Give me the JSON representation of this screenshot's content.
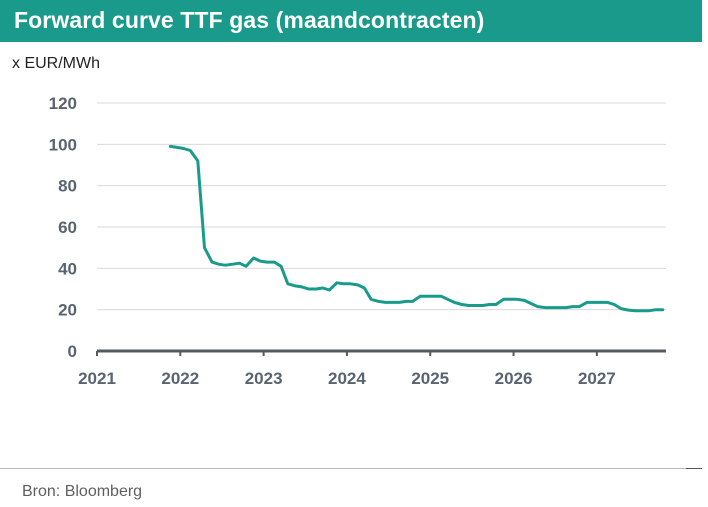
{
  "header": {
    "title": "Forward curve TTF gas (maandcontracten)"
  },
  "unit_label": "x EUR/MWh",
  "footer": {
    "source": "Bron: Bloomberg"
  },
  "colors": {
    "title_bg": "#1a9a8a",
    "line": "#1a9a8a",
    "grid": "#d9d9d9",
    "axis": "#555a60"
  },
  "chart_data": {
    "type": "line",
    "title": "Forward curve TTF gas (maandcontracten)",
    "ylabel": "x EUR/MWh",
    "xlabel": "",
    "ylim": [
      0,
      120
    ],
    "xlim": [
      2021.0,
      2027.83
    ],
    "yticks": [
      0,
      20,
      40,
      60,
      80,
      100,
      120
    ],
    "xticks": [
      {
        "value": 2021,
        "label": "2021"
      },
      {
        "value": 2022,
        "label": "2022"
      },
      {
        "value": 2023,
        "label": "2023"
      },
      {
        "value": 2024,
        "label": "2024"
      },
      {
        "value": 2025,
        "label": "2025"
      },
      {
        "value": 2026,
        "label": "2026"
      },
      {
        "value": 2027,
        "label": "2027"
      }
    ],
    "grid": true,
    "legend": "none",
    "series": [
      {
        "points": [
          [
            2021.88,
            99
          ],
          [
            2021.96,
            98.5
          ],
          [
            2022.04,
            98
          ],
          [
            2022.12,
            97
          ],
          [
            2022.21,
            92
          ],
          [
            2022.29,
            50
          ],
          [
            2022.38,
            43
          ],
          [
            2022.46,
            42
          ],
          [
            2022.54,
            41.5
          ],
          [
            2022.63,
            42
          ],
          [
            2022.71,
            42.5
          ],
          [
            2022.79,
            41
          ],
          [
            2022.88,
            45
          ],
          [
            2022.96,
            43.5
          ],
          [
            2023.04,
            43
          ],
          [
            2023.13,
            43
          ],
          [
            2023.21,
            41
          ],
          [
            2023.29,
            32.5
          ],
          [
            2023.38,
            31.5
          ],
          [
            2023.46,
            31
          ],
          [
            2023.54,
            30
          ],
          [
            2023.63,
            30
          ],
          [
            2023.71,
            30.5
          ],
          [
            2023.79,
            29.5
          ],
          [
            2023.88,
            33
          ],
          [
            2023.96,
            32.5
          ],
          [
            2024.04,
            32.5
          ],
          [
            2024.13,
            32
          ],
          [
            2024.21,
            30.5
          ],
          [
            2024.29,
            25
          ],
          [
            2024.38,
            24
          ],
          [
            2024.46,
            23.5
          ],
          [
            2024.54,
            23.5
          ],
          [
            2024.63,
            23.5
          ],
          [
            2024.71,
            24
          ],
          [
            2024.79,
            24
          ],
          [
            2024.88,
            26.5
          ],
          [
            2024.96,
            26.5
          ],
          [
            2025.04,
            26.5
          ],
          [
            2025.13,
            26.5
          ],
          [
            2025.21,
            25
          ],
          [
            2025.29,
            23.5
          ],
          [
            2025.38,
            22.5
          ],
          [
            2025.46,
            22
          ],
          [
            2025.54,
            22
          ],
          [
            2025.63,
            22
          ],
          [
            2025.71,
            22.5
          ],
          [
            2025.79,
            22.5
          ],
          [
            2025.88,
            25
          ],
          [
            2025.96,
            25
          ],
          [
            2026.04,
            25
          ],
          [
            2026.13,
            24.5
          ],
          [
            2026.21,
            23
          ],
          [
            2026.29,
            21.5
          ],
          [
            2026.38,
            21
          ],
          [
            2026.46,
            21
          ],
          [
            2026.54,
            21
          ],
          [
            2026.63,
            21
          ],
          [
            2026.71,
            21.5
          ],
          [
            2026.79,
            21.5
          ],
          [
            2026.88,
            23.5
          ],
          [
            2026.96,
            23.5
          ],
          [
            2027.04,
            23.5
          ],
          [
            2027.13,
            23.5
          ],
          [
            2027.21,
            22.5
          ],
          [
            2027.29,
            20.5
          ],
          [
            2027.38,
            19.8
          ],
          [
            2027.46,
            19.5
          ],
          [
            2027.54,
            19.5
          ],
          [
            2027.63,
            19.5
          ],
          [
            2027.71,
            20
          ],
          [
            2027.79,
            20
          ]
        ]
      }
    ]
  }
}
